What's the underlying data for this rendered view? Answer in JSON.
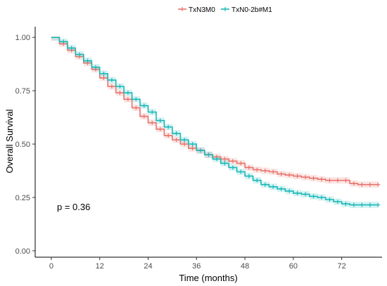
{
  "chart_data": {
    "type": "line",
    "step": true,
    "xlabel": "Time (months)",
    "ylabel": "Overall Survival",
    "xlim": [
      -4,
      82
    ],
    "ylim": [
      -0.03,
      1.05
    ],
    "xticks": [
      0,
      12,
      24,
      36,
      48,
      60,
      72
    ],
    "yticks": [
      0,
      0.25,
      0.5,
      0.75,
      1.0
    ],
    "ytick_labels": [
      "0.00",
      "0.25",
      "0.50",
      "0.75",
      "1.00"
    ],
    "grid": false,
    "legend_position": "top",
    "annotation": "p = 0.36",
    "series": [
      {
        "name": "TxN3M0",
        "color": "#e8736c",
        "x": [
          0,
          2,
          4,
          6,
          8,
          10,
          12,
          14,
          16,
          18,
          20,
          22,
          24,
          26,
          28,
          30,
          32,
          34,
          36,
          38,
          40,
          42,
          44,
          46,
          48,
          50,
          52,
          54,
          56,
          58,
          60,
          62,
          64,
          66,
          68,
          70,
          72,
          74,
          76,
          78,
          80
        ],
        "y": [
          1.0,
          0.97,
          0.94,
          0.91,
          0.88,
          0.85,
          0.81,
          0.77,
          0.74,
          0.71,
          0.67,
          0.63,
          0.6,
          0.57,
          0.54,
          0.52,
          0.5,
          0.48,
          0.47,
          0.45,
          0.44,
          0.43,
          0.42,
          0.41,
          0.39,
          0.38,
          0.375,
          0.37,
          0.36,
          0.355,
          0.35,
          0.345,
          0.34,
          0.335,
          0.33,
          0.33,
          0.33,
          0.315,
          0.31,
          0.31,
          0.31
        ]
      },
      {
        "name": "TxN0-2b#M1",
        "color": "#19b8b8",
        "x": [
          0,
          2,
          4,
          6,
          8,
          10,
          12,
          14,
          16,
          18,
          20,
          22,
          24,
          26,
          28,
          30,
          32,
          34,
          36,
          38,
          40,
          42,
          44,
          46,
          48,
          50,
          52,
          54,
          56,
          58,
          60,
          62,
          64,
          66,
          68,
          70,
          72,
          74,
          76,
          78,
          80
        ],
        "y": [
          1.0,
          0.98,
          0.95,
          0.92,
          0.89,
          0.86,
          0.83,
          0.8,
          0.77,
          0.74,
          0.71,
          0.68,
          0.65,
          0.61,
          0.58,
          0.55,
          0.52,
          0.5,
          0.47,
          0.45,
          0.43,
          0.41,
          0.39,
          0.37,
          0.35,
          0.33,
          0.31,
          0.3,
          0.29,
          0.28,
          0.27,
          0.265,
          0.255,
          0.25,
          0.24,
          0.23,
          0.22,
          0.215,
          0.215,
          0.215,
          0.215
        ]
      }
    ]
  }
}
